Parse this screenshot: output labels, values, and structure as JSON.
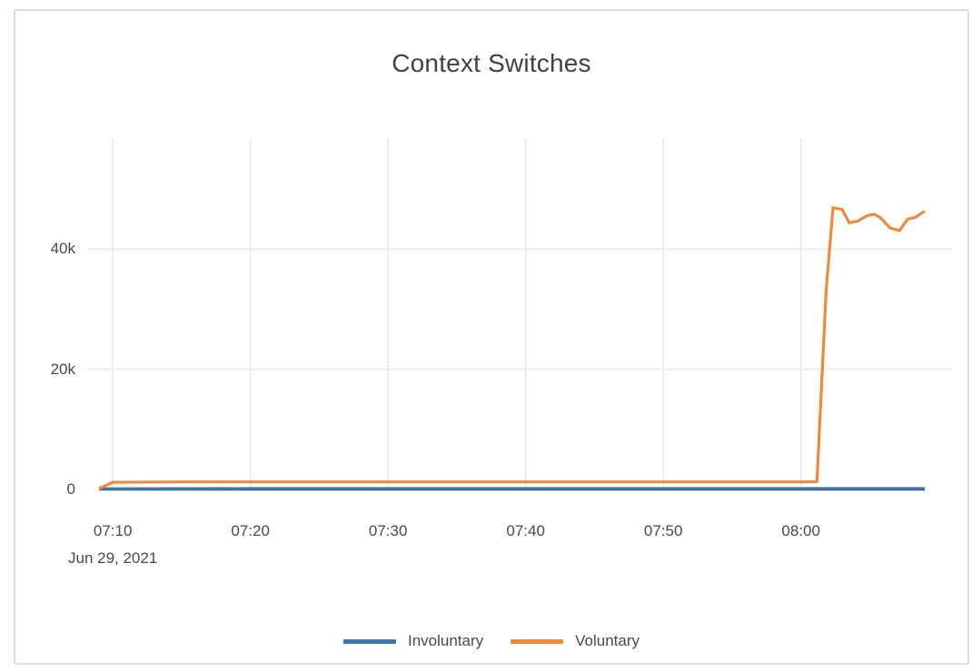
{
  "chart_data": {
    "type": "line",
    "title": "Context Switches",
    "legend_position": "bottom-center",
    "grid": true,
    "x_axis": {
      "range": [
        "07:09",
        "08:09"
      ],
      "ticks": [
        "07:10",
        "07:20",
        "07:30",
        "07:40",
        "07:50",
        "08:00"
      ],
      "date_label": "Jun 29, 2021"
    },
    "y_axis": {
      "range": [
        0,
        58500
      ],
      "ticks": [
        {
          "value": 0,
          "label": "0"
        },
        {
          "value": 20000,
          "label": "20k"
        },
        {
          "value": 40000,
          "label": "40k"
        }
      ]
    },
    "series": [
      {
        "name": "Involuntary",
        "color": "#3b76ad",
        "points": [
          [
            "07:09:00",
            100
          ],
          [
            "07:20:00",
            150
          ],
          [
            "07:30:00",
            150
          ],
          [
            "07:40:00",
            150
          ],
          [
            "07:50:00",
            150
          ],
          [
            "08:00:00",
            150
          ],
          [
            "08:09:00",
            150
          ]
        ]
      },
      {
        "name": "Voluntary",
        "color": "#ef8a3b",
        "points": [
          [
            "07:09:00",
            150
          ],
          [
            "07:10:00",
            1200
          ],
          [
            "07:15:00",
            1250
          ],
          [
            "07:20:00",
            1250
          ],
          [
            "07:25:00",
            1250
          ],
          [
            "07:30:00",
            1250
          ],
          [
            "07:35:00",
            1250
          ],
          [
            "07:40:00",
            1250
          ],
          [
            "07:45:00",
            1250
          ],
          [
            "07:50:00",
            1250
          ],
          [
            "07:55:00",
            1250
          ],
          [
            "08:00:00",
            1250
          ],
          [
            "08:01:10",
            1300
          ],
          [
            "08:01:50",
            33000
          ],
          [
            "08:02:20",
            46900
          ],
          [
            "08:03:00",
            46600
          ],
          [
            "08:03:30",
            44400
          ],
          [
            "08:04:10",
            44700
          ],
          [
            "08:04:50",
            45600
          ],
          [
            "08:05:20",
            45800
          ],
          [
            "08:05:45",
            45300
          ],
          [
            "08:06:30",
            43500
          ],
          [
            "08:07:10",
            43100
          ],
          [
            "08:07:45",
            45000
          ],
          [
            "08:08:20",
            45300
          ],
          [
            "08:08:50",
            46100
          ],
          [
            "08:09:00",
            46300
          ]
        ]
      }
    ],
    "colors": {
      "grid_line": "#e9e9e9",
      "zero_line": "#47494c",
      "card_border": "#dcdcdc",
      "text": "#46494d",
      "background": "#ffffff"
    }
  }
}
